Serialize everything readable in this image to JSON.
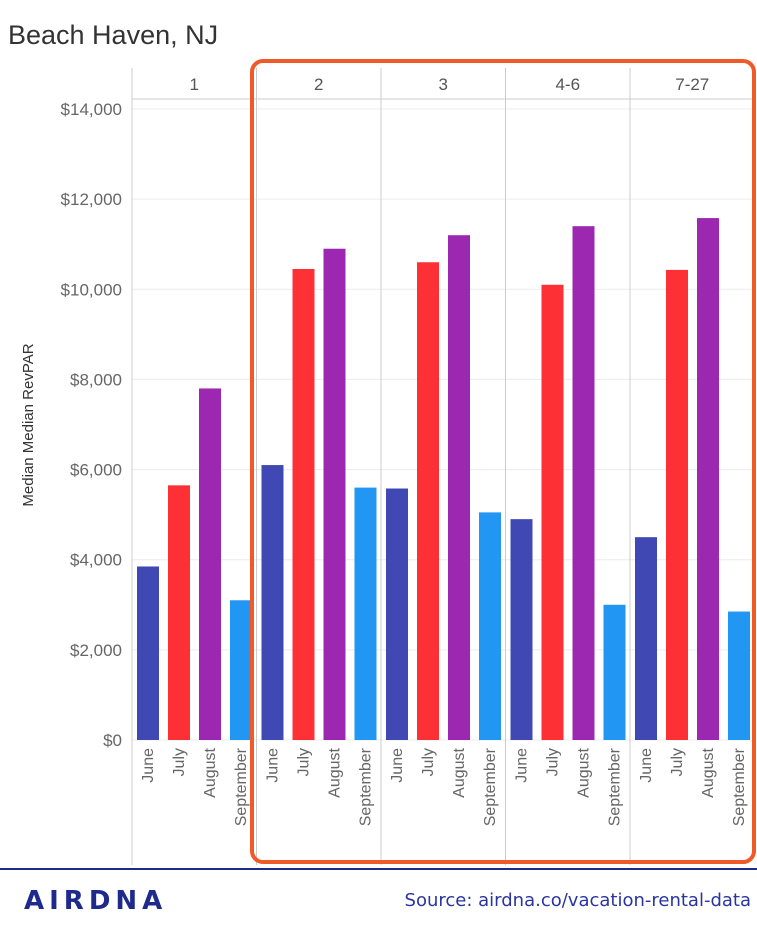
{
  "chart_data": {
    "type": "bar",
    "title": "Beach Haven, NJ",
    "ylabel": "Median Median RevPAR",
    "ylim": [
      0,
      14000
    ],
    "yticks": [
      0,
      2000,
      4000,
      6000,
      8000,
      10000,
      12000,
      14000
    ],
    "ytick_labels": [
      "$0",
      "$2,000",
      "$4,000",
      "$6,000",
      "$8,000",
      "$10,000",
      "$12,000",
      "$14,000"
    ],
    "grid": true,
    "months": [
      "June",
      "July",
      "August",
      "September"
    ],
    "colors": [
      "#3f48b3",
      "#fc3035",
      "#9c27b0",
      "#2196f3"
    ],
    "highlight_color": "#f05a28",
    "groups": [
      {
        "label": "1",
        "values": [
          3850,
          5650,
          7800,
          3100
        ]
      },
      {
        "label": "2",
        "values": [
          6100,
          10450,
          10900,
          5600
        ]
      },
      {
        "label": "3",
        "values": [
          5580,
          10600,
          11200,
          5050
        ]
      },
      {
        "label": "4-6",
        "values": [
          4900,
          10100,
          11400,
          3000
        ]
      },
      {
        "label": "7-27",
        "values": [
          4500,
          10430,
          11580,
          2850
        ]
      }
    ]
  },
  "footer": {
    "brand": "AIRDNA",
    "source": "Source: airdna.co/vacation-rental-data"
  }
}
